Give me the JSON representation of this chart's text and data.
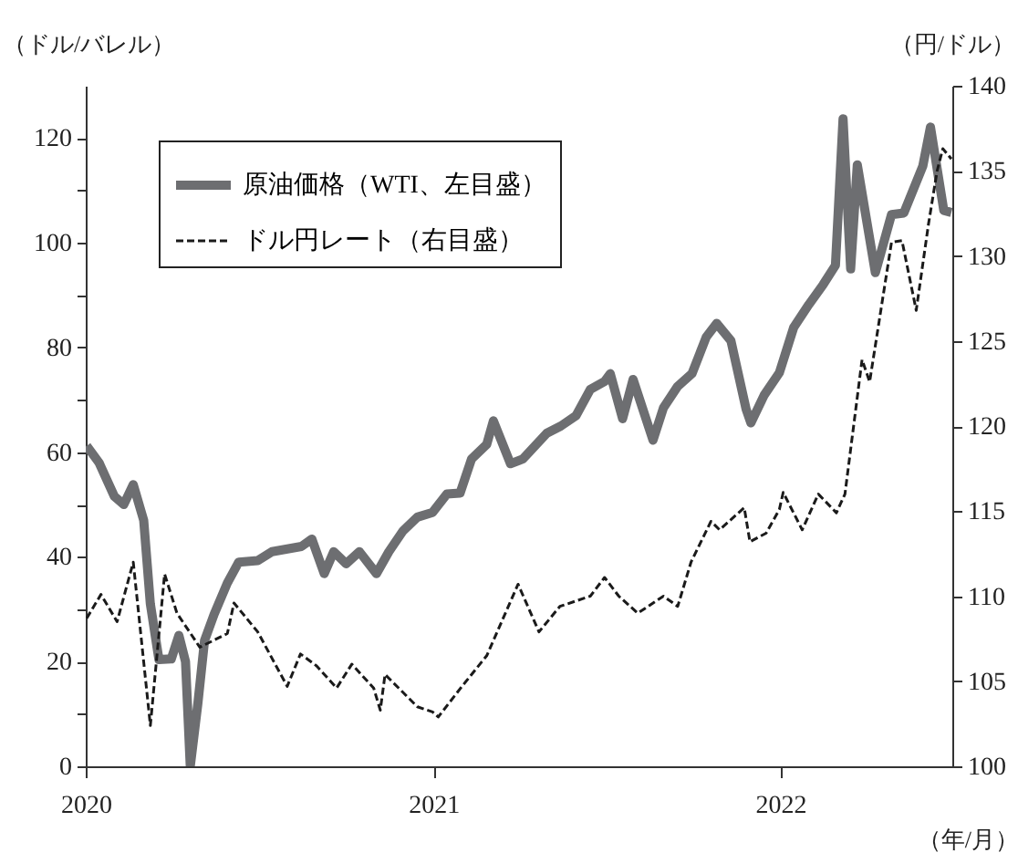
{
  "chart_data": {
    "type": "line",
    "xlabel": "（年/月）",
    "ylabel": "（ドル/バレル）",
    "y2label": "（円/ドル）",
    "xlim": [
      "2020-01-01",
      "2022-07-01"
    ],
    "xticks": [
      "2020",
      "2021",
      "2022"
    ],
    "ylim": [
      0,
      130
    ],
    "yticks": [
      0,
      {
        "value": 10,
        "label": null
      },
      20,
      {
        "value": 30,
        "label": null
      },
      40,
      {
        "value": 50,
        "label": null
      },
      60,
      {
        "value": 70,
        "label": null
      },
      80,
      {
        "value": 90,
        "label": null
      },
      100,
      {
        "value": 110,
        "label": null
      },
      120
    ],
    "y2lim": [
      100,
      140
    ],
    "y2ticks": [
      100,
      105,
      110,
      115,
      120,
      125,
      130,
      135,
      140
    ],
    "legend": "top left",
    "grid": false,
    "series": [
      {
        "name": "原油価格（WTI、左目盛）",
        "color": "#6d6e71",
        "line_style": "solid",
        "x": [
          "2020-01-02",
          "2020-01-15",
          "2020-01-31",
          "2020-02-10",
          "2020-02-20",
          "2020-03-02",
          "2020-03-09",
          "2020-03-18",
          "2020-03-31",
          "2020-04-08",
          "2020-04-15",
          "2020-04-20",
          "2020-04-28",
          "2020-05-05",
          "2020-05-15",
          "2020-05-29",
          "2020-06-10",
          "2020-06-30",
          "2020-07-15",
          "2020-08-15",
          "2020-08-26",
          "2020-09-08",
          "2020-09-18",
          "2020-10-01",
          "2020-10-15",
          "2020-11-02",
          "2020-11-15",
          "2020-11-30",
          "2020-12-15",
          "2020-12-31",
          "2021-01-15",
          "2021-01-29",
          "2021-02-10",
          "2021-02-26",
          "2021-03-05",
          "2021-03-23",
          "2021-04-05",
          "2021-04-30",
          "2021-05-15",
          "2021-05-31",
          "2021-06-15",
          "2021-06-30",
          "2021-07-06",
          "2021-07-19",
          "2021-07-30",
          "2021-08-20",
          "2021-08-31",
          "2021-09-15",
          "2021-09-30",
          "2021-10-15",
          "2021-10-26",
          "2021-11-10",
          "2021-11-26",
          "2021-12-01",
          "2021-12-15",
          "2021-12-31",
          "2022-01-15",
          "2022-01-31",
          "2022-02-15",
          "2022-02-28",
          "2022-03-08",
          "2022-03-16",
          "2022-03-23",
          "2022-04-11",
          "2022-04-28",
          "2022-05-11",
          "2022-05-31",
          "2022-06-08",
          "2022-06-22",
          "2022-06-30"
        ],
        "values": [
          61.2,
          58,
          51.6,
          50,
          53.8,
          47,
          31,
          20.4,
          20.5,
          25,
          20,
          0,
          12,
          24,
          29,
          35,
          39,
          39.3,
          41,
          42,
          43.4,
          36.8,
          41,
          38.7,
          41,
          36.8,
          41,
          45,
          47.6,
          48.5,
          52,
          52.2,
          58.7,
          61.5,
          66,
          57.8,
          58.7,
          63.6,
          65,
          67,
          72,
          73.5,
          75,
          66.4,
          73.9,
          62.3,
          68.5,
          72.6,
          75,
          82,
          84.6,
          81.3,
          68.2,
          65.6,
          70.9,
          75.2,
          83.8,
          88.2,
          92,
          95.7,
          123.7,
          95,
          114.9,
          94.3,
          105.4,
          105.7,
          114.7,
          122.1,
          106.2,
          105.8
        ]
      },
      {
        "name": "ドル円レート（右目盛）",
        "color": "#1a1a1a",
        "line_style": "dashed",
        "axis": "y2",
        "x": [
          "2020-01-02",
          "2020-01-17",
          "2020-02-03",
          "2020-02-20",
          "2020-03-09",
          "2020-03-24",
          "2020-04-06",
          "2020-04-30",
          "2020-05-29",
          "2020-06-05",
          "2020-06-30",
          "2020-07-31",
          "2020-08-14",
          "2020-08-31",
          "2020-09-21",
          "2020-10-07",
          "2020-10-30",
          "2020-11-06",
          "2020-11-11",
          "2020-12-15",
          "2020-12-31",
          "2021-01-06",
          "2021-01-31",
          "2021-02-26",
          "2021-03-31",
          "2021-04-22",
          "2021-05-14",
          "2021-06-15",
          "2021-06-30",
          "2021-07-15",
          "2021-08-04",
          "2021-08-31",
          "2021-09-15",
          "2021-09-29",
          "2021-10-20",
          "2021-10-29",
          "2021-11-24",
          "2021-11-30",
          "2021-12-17",
          "2021-12-31",
          "2022-01-04",
          "2022-01-24",
          "2022-02-10",
          "2022-03-01",
          "2022-03-10",
          "2022-03-28",
          "2022-04-05",
          "2022-04-28",
          "2022-05-09",
          "2022-05-24",
          "2022-06-06",
          "2022-06-15",
          "2022-06-21",
          "2022-06-30"
        ],
        "values": [
          108.7,
          110.1,
          108.5,
          112,
          102.4,
          111.3,
          109,
          107,
          107.8,
          109.6,
          107.9,
          104.7,
          106.6,
          105.9,
          104.6,
          106,
          104.6,
          103.3,
          105.4,
          103.5,
          103.2,
          102.9,
          104.7,
          106.5,
          110.7,
          107.9,
          109.4,
          110,
          111.1,
          110,
          109,
          110,
          109.4,
          112,
          114.4,
          113.9,
          115.2,
          113.2,
          113.7,
          115.1,
          116.1,
          113.9,
          116,
          114.9,
          116,
          123.9,
          122.6,
          130.8,
          130.9,
          126.8,
          131.9,
          135,
          136.3,
          135.7
        ]
      }
    ]
  }
}
